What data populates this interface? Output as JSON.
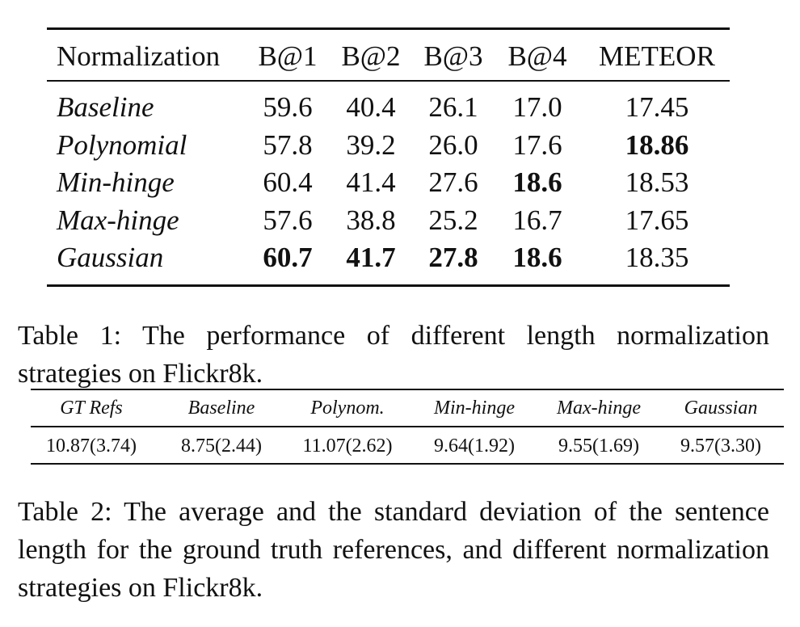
{
  "table1": {
    "headers": [
      "Normalization",
      "B@1",
      "B@2",
      "B@3",
      "B@4",
      "METEOR"
    ],
    "rows": [
      {
        "label": "Baseline",
        "values": [
          "59.6",
          "40.4",
          "26.1",
          "17.0",
          "17.45"
        ]
      },
      {
        "label": "Polynomial",
        "values": [
          "57.8",
          "39.2",
          "26.0",
          "17.6",
          "18.86"
        ]
      },
      {
        "label": "Min-hinge",
        "values": [
          "60.4",
          "41.4",
          "27.6",
          "18.6",
          "18.53"
        ]
      },
      {
        "label": "Max-hinge",
        "values": [
          "57.6",
          "38.8",
          "25.2",
          "16.7",
          "17.65"
        ]
      },
      {
        "label": "Gaussian",
        "values": [
          "60.7",
          "41.7",
          "27.8",
          "18.6",
          "18.35"
        ]
      }
    ],
    "caption": "Table 1: The performance of different length normalization strategies on Flickr8k."
  },
  "table2": {
    "headers": [
      "GT Refs",
      "Baseline",
      "Polynom.",
      "Min-hinge",
      "Max-hinge",
      "Gaussian"
    ],
    "values": [
      "10.87(3.74)",
      "8.75(2.44)",
      "11.07(2.62)",
      "9.64(1.92)",
      "9.55(1.69)",
      "9.57(3.30)"
    ],
    "caption": "Table 2: The average and the standard deviation of the sentence length for the ground truth references, and different normalization strategies on Flickr8k."
  }
}
